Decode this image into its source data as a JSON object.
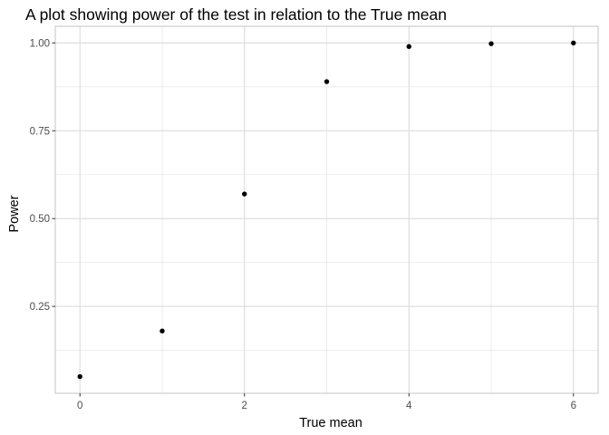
{
  "chart_data": {
    "type": "scatter",
    "title": "A plot showing power of the test in relation to the True mean",
    "xlabel": "True mean",
    "ylabel": "Power",
    "x": [
      0,
      1,
      2,
      3,
      4,
      5,
      6
    ],
    "y": [
      0.05,
      0.18,
      0.57,
      0.89,
      0.99,
      0.998,
      1.0
    ],
    "xlim": [
      -0.3,
      6.3
    ],
    "ylim": [
      0.0025,
      1.0475
    ],
    "x_major_ticks": [
      0,
      2,
      4,
      6
    ],
    "x_tick_labels": [
      "0",
      "2",
      "4",
      "6"
    ],
    "x_minor_ticks": [
      1,
      3,
      5
    ],
    "y_major_ticks": [
      0.25,
      0.5,
      0.75,
      1.0
    ],
    "y_tick_labels": [
      "0.25",
      "0.50",
      "0.75",
      "1.00"
    ],
    "y_minor_ticks": [
      0.125,
      0.375,
      0.625,
      0.875
    ],
    "grid": true,
    "legend": "none",
    "colors": {
      "point": "#000000",
      "grid": "#dcdcdc",
      "panel_border": "#c6c6c6",
      "tick_text": "#4d4d4d"
    }
  }
}
